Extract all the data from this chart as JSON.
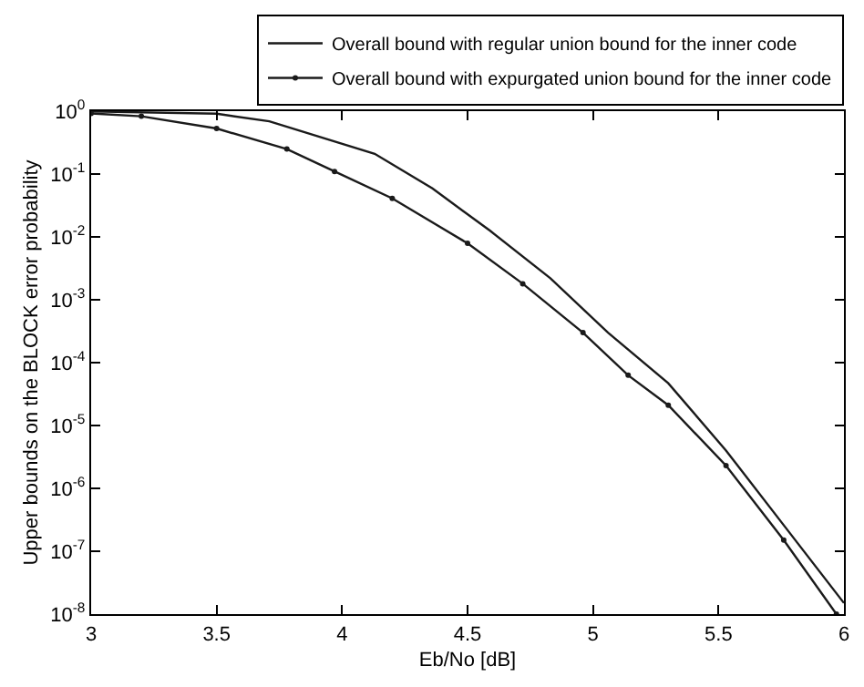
{
  "chart_data": {
    "type": "line",
    "xlabel": "Eb/No [dB]",
    "ylabel": "Upper bounds on the BLOCK error probability",
    "log": "y",
    "legend": "top right",
    "xlim": [
      3,
      6
    ],
    "xticks": [
      3,
      3.5,
      4,
      4.5,
      5,
      5.5,
      6
    ],
    "ylim": [
      1e-08,
      1
    ],
    "yticks": [
      {
        "value": 1,
        "label": "10$^{0}$"
      },
      {
        "value": 0.1,
        "label": "10$^{-1}$"
      },
      {
        "value": 0.01,
        "label": "10$^{-2}$"
      },
      {
        "value": 0.001,
        "label": "10$^{-3}$"
      },
      {
        "value": 0.0001,
        "label": "10$^{-4}$"
      },
      {
        "value": 1e-05,
        "label": "10$^{-5}$"
      },
      {
        "value": 1e-06,
        "label": "10$^{-6}$"
      },
      {
        "value": 1e-07,
        "label": "10$^{-7}$"
      },
      {
        "value": 1e-08,
        "label": "10$^{-8}$"
      }
    ],
    "series": [
      {
        "name": "Overall bound with regular union bound for the inner code",
        "color": "#1a1a1a",
        "marker": "none",
        "x": [
          3,
          3.5,
          3.71,
          4.13,
          4.36,
          4.59,
          4.83,
          5.06,
          5.3,
          5.53,
          5.76,
          6
        ],
        "values": [
          0.99,
          0.91,
          0.69,
          0.21,
          0.059,
          0.0125,
          0.0022,
          0.0003,
          4.7e-05,
          4e-06,
          2.6e-07,
          1.5e-08
        ]
      },
      {
        "name": "Overall bound with expurgated union bound for the inner code",
        "color": "#1a1a1a",
        "marker": "circle",
        "x": [
          3,
          3.2,
          3.5,
          3.78,
          3.97,
          4.2,
          4.5,
          4.72,
          4.96,
          5.14,
          5.3,
          5.53,
          5.76,
          5.97
        ],
        "values": [
          0.92,
          0.83,
          0.53,
          0.25,
          0.11,
          0.041,
          0.0079,
          0.0018,
          0.0003,
          6.3e-05,
          2.1e-05,
          2.3e-06,
          1.5e-07,
          1e-08
        ]
      }
    ]
  }
}
